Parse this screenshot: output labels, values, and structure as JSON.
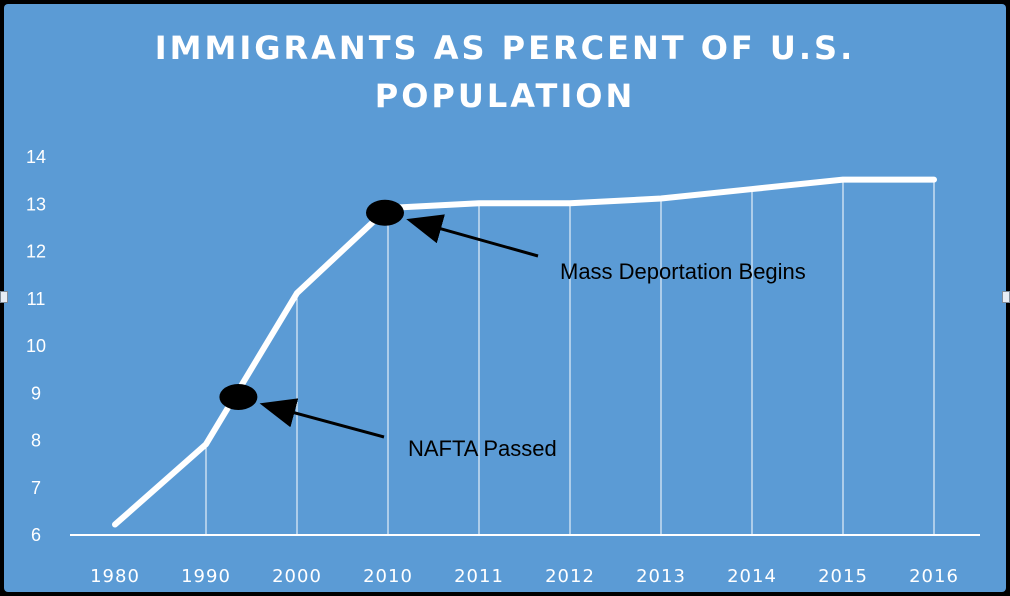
{
  "chart_data": {
    "type": "line",
    "title": "IMMIGRANTS AS PERCENT OF U.S. POPULATION",
    "categories": [
      "1980",
      "1990",
      "2000",
      "2010",
      "2011",
      "2012",
      "2013",
      "2014",
      "2015",
      "2016"
    ],
    "series": [
      {
        "values": [
          6.2,
          7.9,
          11.1,
          12.9,
          13.0,
          13.0,
          13.1,
          13.3,
          13.5,
          13.5
        ]
      }
    ],
    "ylim": [
      6,
      14
    ],
    "yticks": [
      6,
      7,
      8,
      9,
      10,
      11,
      12,
      13,
      14
    ],
    "grid": "vertical drop lines",
    "colors": {
      "background": "#5b9bd5",
      "line": "#ffffff",
      "marker": "#000000"
    },
    "annotations": [
      {
        "label": "NAFTA Passed",
        "x": "1994",
        "y": 8.9
      },
      {
        "label": "Mass Deportation Begins",
        "x": "2010",
        "y": 12.8
      }
    ]
  }
}
